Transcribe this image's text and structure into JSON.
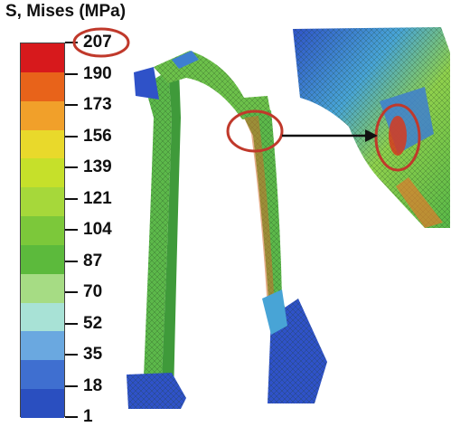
{
  "legend": {
    "title": "S, Mises (MPa)",
    "ticks": [
      "207",
      "190",
      "173",
      "156",
      "139",
      "121",
      "104",
      "87",
      "70",
      "52",
      "35",
      "18",
      "1"
    ],
    "band_colors": [
      "#d7191c",
      "#e8631a",
      "#f1a02a",
      "#e9d92b",
      "#c6e02a",
      "#a6d83a",
      "#7cc83a",
      "#5cba3c",
      "#a6dc84",
      "#a8e2d6",
      "#6aa8e0",
      "#3f6fd0",
      "#2a4fc0"
    ]
  },
  "colors": {
    "highlight_circle": "#c0392b",
    "arrow": "#111111",
    "mesh_green": "#5cb84a",
    "mesh_blue": "#2f52c8",
    "stress_red": "#d63a1e"
  }
}
